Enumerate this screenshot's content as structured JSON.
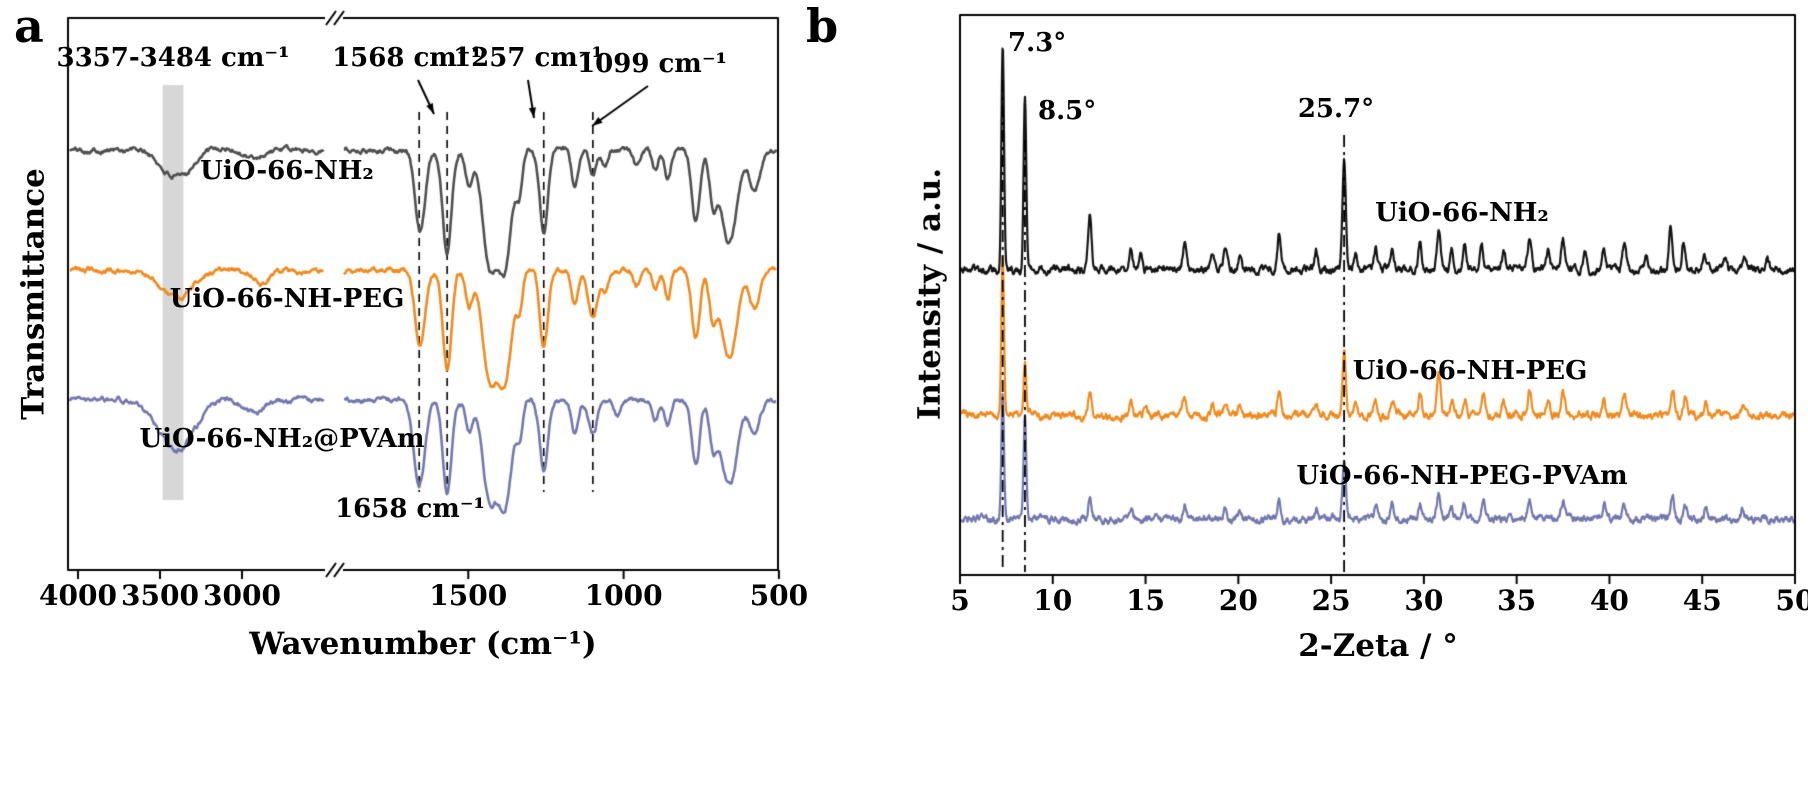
{
  "page": {
    "background": "#ffffff"
  },
  "figure": {
    "panel_a": {
      "label": "a"
    },
    "panel_b": {
      "label": "b"
    }
  },
  "chart_data": [
    {
      "type": "line",
      "panel": "a",
      "xlabel": "Wavenumber (cm⁻¹)",
      "ylabel": "Transmittance",
      "x_reversed": true,
      "x_ticks": [
        4000,
        3500,
        3000,
        1500,
        1000,
        500
      ],
      "axis_break": {
        "left_range": [
          4000,
          2490
        ],
        "right_range": [
          1900,
          500
        ]
      },
      "highlight_band": {
        "from": 3484,
        "to": 3357,
        "color": "#d3d3d3"
      },
      "dashed_lines_cm": [
        1658,
        1568,
        1257,
        1099
      ],
      "annotations": [
        {
          "text": "3357-3484 cm⁻¹"
        },
        {
          "text": "1568 cm⁻¹"
        },
        {
          "text": "1257 cm⁻¹"
        },
        {
          "text": "1099 cm⁻¹"
        },
        {
          "text": "1658 cm⁻¹"
        }
      ],
      "series": [
        {
          "name": "UiO-66-NH₂",
          "color": "#4f4f4f",
          "baseline": 0.764,
          "bands": [
            [
              3460,
              65,
              0.032
            ],
            [
              3355,
              65,
              0.038
            ],
            [
              2930,
              55,
              0.015
            ],
            [
              1655,
              16,
              0.15
            ],
            [
              1568,
              14,
              0.19
            ],
            [
              1497,
              12,
              0.065
            ],
            [
              1432,
              22,
              0.2
            ],
            [
              1382,
              22,
              0.21
            ],
            [
              1335,
              10,
              0.07
            ],
            [
              1257,
              13,
              0.15
            ],
            [
              1157,
              11,
              0.065
            ],
            [
              1099,
              11,
              0.045
            ],
            [
              1060,
              10,
              0.03
            ],
            [
              958,
              10,
              0.03
            ],
            [
              898,
              10,
              0.04
            ],
            [
              858,
              10,
              0.055
            ],
            [
              768,
              13,
              0.135
            ],
            [
              712,
              12,
              0.085
            ],
            [
              660,
              26,
              0.17
            ],
            [
              578,
              16,
              0.075
            ]
          ]
        },
        {
          "name": "UiO-66-NH-PEG",
          "color": "#ef8a1f",
          "baseline": 0.545,
          "bands": [
            [
              3450,
              75,
              0.03
            ],
            [
              3350,
              75,
              0.032
            ],
            [
              2880,
              50,
              0.022
            ],
            [
              1655,
              16,
              0.14
            ],
            [
              1568,
              14,
              0.18
            ],
            [
              1497,
              12,
              0.06
            ],
            [
              1432,
              22,
              0.19
            ],
            [
              1382,
              22,
              0.2
            ],
            [
              1335,
              10,
              0.065
            ],
            [
              1257,
              13,
              0.14
            ],
            [
              1157,
              11,
              0.062
            ],
            [
              1099,
              15,
              0.085
            ],
            [
              1060,
              10,
              0.032
            ],
            [
              958,
              10,
              0.03
            ],
            [
              898,
              10,
              0.038
            ],
            [
              858,
              10,
              0.05
            ],
            [
              768,
              13,
              0.125
            ],
            [
              712,
              12,
              0.08
            ],
            [
              660,
              26,
              0.16
            ],
            [
              578,
              16,
              0.07
            ]
          ]
        },
        {
          "name": "UiO-66-NH₂@PVAm",
          "color": "#7278ad",
          "baseline": 0.309,
          "bands": [
            [
              3400,
              110,
              0.09
            ],
            [
              2920,
              55,
              0.025
            ],
            [
              1658,
              18,
              0.155
            ],
            [
              1568,
              14,
              0.17
            ],
            [
              1497,
              12,
              0.055
            ],
            [
              1432,
              22,
              0.175
            ],
            [
              1382,
              22,
              0.185
            ],
            [
              1335,
              10,
              0.06
            ],
            [
              1257,
              13,
              0.13
            ],
            [
              1157,
              11,
              0.058
            ],
            [
              1099,
              13,
              0.065
            ],
            [
              1020,
              10,
              0.03
            ],
            [
              898,
              10,
              0.032
            ],
            [
              858,
              10,
              0.045
            ],
            [
              768,
              13,
              0.12
            ],
            [
              712,
              12,
              0.075
            ],
            [
              660,
              26,
              0.155
            ],
            [
              578,
              16,
              0.065
            ]
          ]
        }
      ]
    },
    {
      "type": "line",
      "panel": "b",
      "xlabel": "2-Zeta / °",
      "ylabel": "Intensity / a.u.",
      "xlim": [
        5,
        50
      ],
      "x_ticks": [
        5,
        10,
        15,
        20,
        25,
        30,
        35,
        40,
        45,
        50
      ],
      "dash_dot_lines_deg": [
        7.3,
        8.5,
        25.7
      ],
      "annotations": [
        {
          "text": "7.3°"
        },
        {
          "text": "8.5°"
        },
        {
          "text": "25.7°"
        }
      ],
      "series": [
        {
          "name": "UiO-66-NH₂",
          "color": "#141414",
          "offset": 0.545,
          "peaks": [
            [
              7.3,
              0.41,
              0.07
            ],
            [
              8.5,
              0.31,
              0.07
            ],
            [
              12.0,
              0.1,
              0.09
            ],
            [
              14.2,
              0.035,
              0.09
            ],
            [
              14.75,
              0.03,
              0.09
            ],
            [
              17.1,
              0.048,
              0.09
            ],
            [
              18.6,
              0.03,
              0.09
            ],
            [
              19.3,
              0.038,
              0.09
            ],
            [
              20.1,
              0.025,
              0.09
            ],
            [
              22.2,
              0.062,
              0.09
            ],
            [
              24.2,
              0.03,
              0.09
            ],
            [
              25.7,
              0.2,
              0.09
            ],
            [
              26.3,
              0.03,
              0.09
            ],
            [
              27.4,
              0.038,
              0.09
            ],
            [
              28.3,
              0.032,
              0.09
            ],
            [
              29.8,
              0.05,
              0.09
            ],
            [
              30.8,
              0.065,
              0.1
            ],
            [
              31.5,
              0.035,
              0.09
            ],
            [
              32.2,
              0.045,
              0.09
            ],
            [
              33.1,
              0.05,
              0.09
            ],
            [
              34.3,
              0.03,
              0.09
            ],
            [
              35.7,
              0.055,
              0.1
            ],
            [
              36.7,
              0.032,
              0.09
            ],
            [
              37.5,
              0.05,
              0.1
            ],
            [
              38.7,
              0.025,
              0.09
            ],
            [
              39.7,
              0.04,
              0.09
            ],
            [
              40.8,
              0.045,
              0.1
            ],
            [
              42.0,
              0.022,
              0.09
            ],
            [
              43.3,
              0.075,
              0.1
            ],
            [
              44.0,
              0.05,
              0.09
            ],
            [
              45.1,
              0.03,
              0.09
            ],
            [
              46.2,
              0.02,
              0.09
            ],
            [
              47.3,
              0.02,
              0.09
            ],
            [
              48.5,
              0.02,
              0.09
            ]
          ]
        },
        {
          "name": "UiO-66-NH-PEG",
          "color": "#ef8a1f",
          "offset": 0.285,
          "peaks": [
            [
              7.3,
              0.285,
              0.07
            ],
            [
              8.5,
              0.095,
              0.07
            ],
            [
              12.0,
              0.045,
              0.09
            ],
            [
              14.2,
              0.02,
              0.09
            ],
            [
              15.0,
              0.018,
              0.09
            ],
            [
              17.1,
              0.032,
              0.09
            ],
            [
              18.6,
              0.02,
              0.09
            ],
            [
              19.3,
              0.026,
              0.09
            ],
            [
              20.1,
              0.02,
              0.09
            ],
            [
              22.2,
              0.048,
              0.09
            ],
            [
              24.2,
              0.02,
              0.09
            ],
            [
              25.7,
              0.115,
              0.09
            ],
            [
              26.3,
              0.02,
              0.09
            ],
            [
              27.4,
              0.026,
              0.09
            ],
            [
              28.3,
              0.03,
              0.09
            ],
            [
              29.8,
              0.036,
              0.09
            ],
            [
              30.8,
              0.078,
              0.1
            ],
            [
              31.5,
              0.026,
              0.09
            ],
            [
              32.2,
              0.032,
              0.09
            ],
            [
              33.2,
              0.045,
              0.09
            ],
            [
              34.3,
              0.022,
              0.09
            ],
            [
              35.7,
              0.042,
              0.1
            ],
            [
              36.7,
              0.024,
              0.09
            ],
            [
              37.5,
              0.038,
              0.1
            ],
            [
              39.7,
              0.03,
              0.09
            ],
            [
              40.8,
              0.034,
              0.1
            ],
            [
              43.4,
              0.048,
              0.1
            ],
            [
              44.1,
              0.032,
              0.09
            ],
            [
              45.2,
              0.022,
              0.09
            ],
            [
              47.2,
              0.016,
              0.09
            ]
          ]
        },
        {
          "name": "UiO-66-NH-PEG-PVAm",
          "color": "#7278ad",
          "offset": 0.1,
          "peaks": [
            [
              7.3,
              0.225,
              0.07
            ],
            [
              8.5,
              0.185,
              0.07
            ],
            [
              12.0,
              0.035,
              0.09
            ],
            [
              14.2,
              0.016,
              0.09
            ],
            [
              17.1,
              0.026,
              0.09
            ],
            [
              19.3,
              0.02,
              0.09
            ],
            [
              20.1,
              0.016,
              0.09
            ],
            [
              22.2,
              0.036,
              0.09
            ],
            [
              24.2,
              0.016,
              0.09
            ],
            [
              25.7,
              0.105,
              0.09
            ],
            [
              27.4,
              0.022,
              0.09
            ],
            [
              28.3,
              0.026,
              0.09
            ],
            [
              29.8,
              0.03,
              0.09
            ],
            [
              30.8,
              0.046,
              0.1
            ],
            [
              31.5,
              0.02,
              0.09
            ],
            [
              32.2,
              0.026,
              0.09
            ],
            [
              33.2,
              0.036,
              0.09
            ],
            [
              35.7,
              0.032,
              0.1
            ],
            [
              37.5,
              0.03,
              0.1
            ],
            [
              39.7,
              0.026,
              0.09
            ],
            [
              40.8,
              0.026,
              0.1
            ],
            [
              43.4,
              0.046,
              0.1
            ],
            [
              44.1,
              0.026,
              0.09
            ],
            [
              45.2,
              0.018,
              0.09
            ],
            [
              47.2,
              0.014,
              0.09
            ]
          ]
        }
      ]
    }
  ]
}
